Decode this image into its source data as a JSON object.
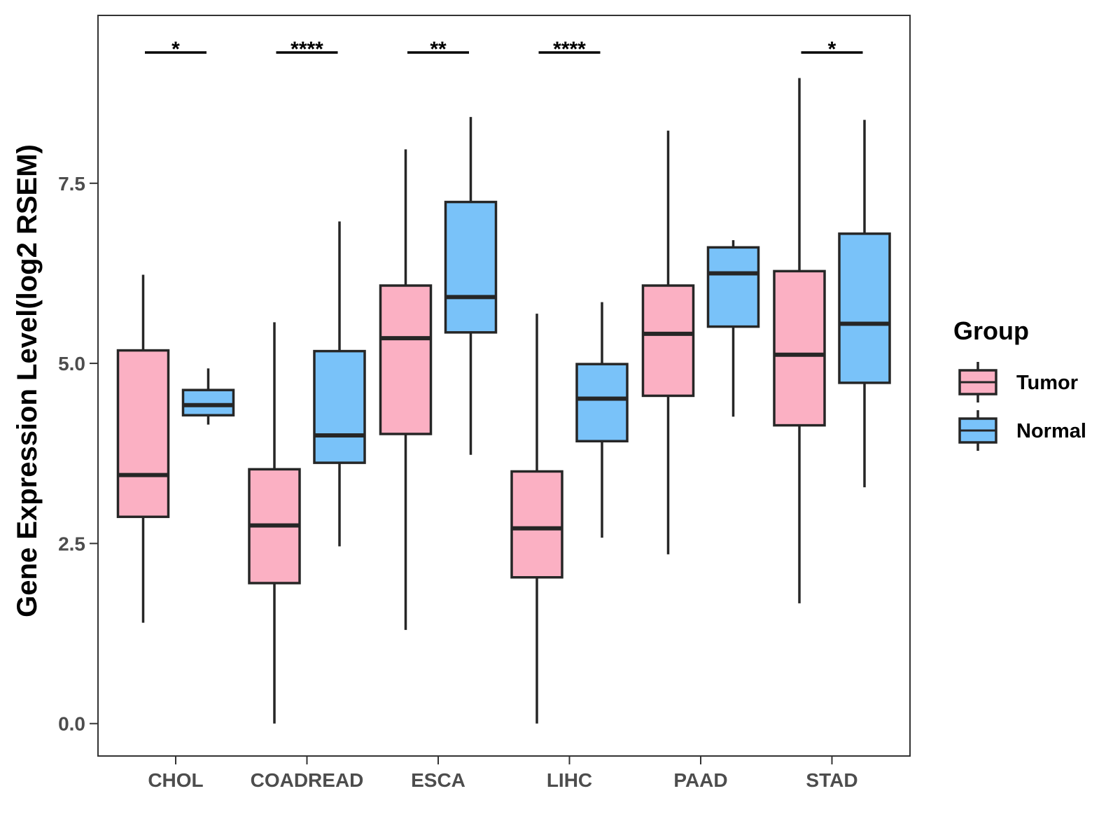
{
  "chart_data": {
    "type": "boxplot",
    "title": "",
    "xlabel": "",
    "ylabel": "Gene Expression Level(log2 RSEM)",
    "ylim": [
      -0.45,
      9.83
    ],
    "y_ticks": [
      0.0,
      2.5,
      5.0,
      7.5
    ],
    "y_tick_labels": [
      "0.0",
      "2.5",
      "5.0",
      "7.5"
    ],
    "grid": false,
    "categories": [
      "CHOL",
      "COADREAD",
      "ESCA",
      "LIHC",
      "PAAD",
      "STAD"
    ],
    "legend": {
      "title": "Group",
      "position": "right",
      "entries": [
        {
          "name": "Tumor",
          "color": "#FBB0C3"
        },
        {
          "name": "Normal",
          "color": "#79C2F9"
        }
      ]
    },
    "series": [
      {
        "name": "Tumor",
        "color": "#FBB0C3",
        "boxes": [
          {
            "min": 1.4,
            "q1": 2.87,
            "median": 3.45,
            "q3": 5.18,
            "max": 6.23
          },
          {
            "min": 0.0,
            "q1": 1.95,
            "median": 2.75,
            "q3": 3.53,
            "max": 5.57
          },
          {
            "min": 1.3,
            "q1": 4.02,
            "median": 5.35,
            "q3": 6.08,
            "max": 7.97
          },
          {
            "min": 0.0,
            "q1": 2.03,
            "median": 2.71,
            "q3": 3.5,
            "max": 5.69
          },
          {
            "min": 2.35,
            "q1": 4.55,
            "median": 5.41,
            "q3": 6.08,
            "max": 8.23
          },
          {
            "min": 1.67,
            "q1": 4.14,
            "median": 5.12,
            "q3": 6.28,
            "max": 8.96
          }
        ]
      },
      {
        "name": "Normal",
        "color": "#79C2F9",
        "boxes": [
          {
            "min": 4.15,
            "q1": 4.28,
            "median": 4.42,
            "q3": 4.63,
            "max": 4.93
          },
          {
            "min": 2.46,
            "q1": 3.62,
            "median": 4.0,
            "q3": 5.17,
            "max": 6.97
          },
          {
            "min": 3.73,
            "q1": 5.43,
            "median": 5.92,
            "q3": 7.24,
            "max": 8.42
          },
          {
            "min": 2.58,
            "q1": 3.92,
            "median": 4.51,
            "q3": 4.99,
            "max": 5.85
          },
          {
            "min": 4.26,
            "q1": 5.51,
            "median": 6.25,
            "q3": 6.61,
            "max": 6.71
          },
          {
            "min": 3.28,
            "q1": 4.73,
            "median": 5.55,
            "q3": 6.8,
            "max": 8.38
          }
        ]
      }
    ],
    "significance": [
      {
        "category": "CHOL",
        "label": "*"
      },
      {
        "category": "COADREAD",
        "label": "****"
      },
      {
        "category": "ESCA",
        "label": "**"
      },
      {
        "category": "LIHC",
        "label": "****"
      },
      {
        "category": "STAD",
        "label": "*"
      }
    ]
  }
}
